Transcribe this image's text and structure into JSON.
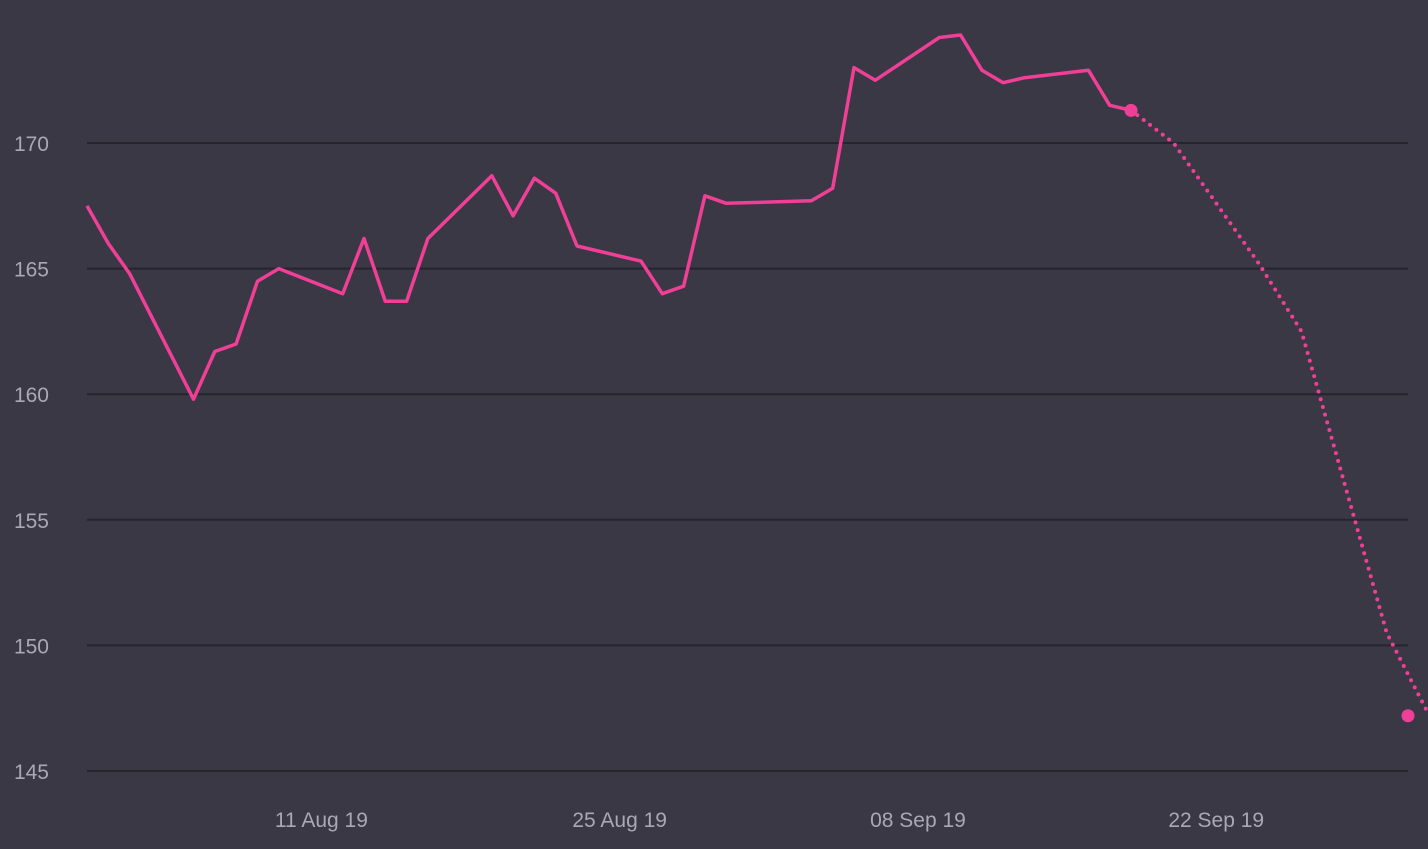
{
  "chart_data": {
    "type": "line",
    "title": "",
    "xlabel": "",
    "ylabel": "",
    "ylim": [
      145,
      174.5
    ],
    "xlim": [
      "2019-07-31",
      "2019-10-01"
    ],
    "grid": true,
    "y_ticks": [
      170,
      165,
      160,
      155,
      150,
      145
    ],
    "x_ticks": [
      {
        "date": "2019-08-11",
        "label": "11 Aug 19"
      },
      {
        "date": "2019-08-25",
        "label": "25 Aug 19"
      },
      {
        "date": "2019-09-08",
        "label": "08 Sep 19"
      },
      {
        "date": "2019-09-22",
        "label": "22 Sep 19"
      }
    ],
    "colors": {
      "background": "#393844",
      "grid": "#26252e",
      "line": "#f03f96",
      "tick_text": "#a9a8b4"
    },
    "series": [
      {
        "style": "solid",
        "x": [
          "2019-07-31",
          "2019-08-01",
          "2019-08-02",
          "2019-08-05",
          "2019-08-06",
          "2019-08-07",
          "2019-08-08",
          "2019-08-09",
          "2019-08-12",
          "2019-08-13",
          "2019-08-14",
          "2019-08-15",
          "2019-08-16",
          "2019-08-19",
          "2019-08-20",
          "2019-08-21",
          "2019-08-22",
          "2019-08-23",
          "2019-08-26",
          "2019-08-27",
          "2019-08-28",
          "2019-08-29",
          "2019-08-30",
          "2019-09-03",
          "2019-09-04",
          "2019-09-05",
          "2019-09-06",
          "2019-09-09",
          "2019-09-10",
          "2019-09-11",
          "2019-09-12",
          "2019-09-13",
          "2019-09-16",
          "2019-09-17",
          "2019-09-18"
        ],
        "values": [
          167.5,
          166.0,
          164.8,
          159.8,
          161.7,
          162.0,
          164.5,
          165.0,
          164.0,
          166.2,
          163.7,
          163.7,
          166.2,
          168.7,
          167.1,
          168.6,
          168.0,
          165.9,
          165.3,
          164.0,
          164.3,
          167.9,
          167.6,
          167.7,
          168.2,
          173.0,
          172.5,
          174.2,
          174.3,
          172.9,
          172.4,
          172.6,
          172.9,
          171.5,
          171.3
        ]
      },
      {
        "style": "dotted",
        "x": [
          "2019-09-18",
          "2019-09-20",
          "2019-09-24",
          "2019-09-26",
          "2019-09-30",
          "2019-10-02"
        ],
        "values": [
          171.3,
          170.0,
          165.2,
          162.5,
          150.5,
          147.2
        ]
      }
    ]
  }
}
